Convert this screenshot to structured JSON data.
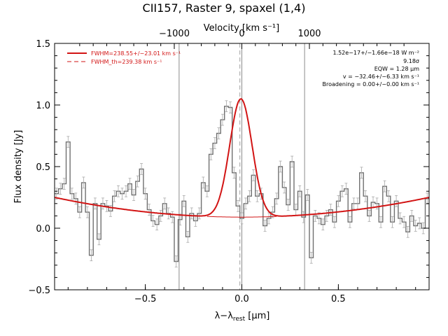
{
  "chart_data": {
    "type": "line",
    "title": "CII157, Raster 9, spaxel (1,4)",
    "xlabel_main": "λ−λ",
    "xlabel_sub": "rest",
    "xlabel_unit": " [μm]",
    "ylabel": "Flux density [Jy]",
    "top_axis_label": "Velocity [km s⁻¹]",
    "xlim": [
      -0.97,
      0.97
    ],
    "ylim": [
      -0.5,
      1.5
    ],
    "x_ticks": [
      -0.5,
      0.0,
      0.5
    ],
    "x_tick_labels": [
      "−0.5",
      "0.0",
      "0.5"
    ],
    "y_ticks": [
      -0.5,
      0.0,
      0.5,
      1.0,
      1.5
    ],
    "y_tick_labels": [
      "−0.5",
      "0.0",
      "0.5",
      "1.0",
      "1.5"
    ],
    "top_ticks": [
      -1000,
      0,
      1000
    ],
    "top_tick_labels": [
      "−1000",
      "0",
      "1000"
    ],
    "top_tick_positions": [
      -0.35,
      0.0,
      0.35
    ],
    "vertical_lines_solid": [
      -0.325,
      0.0,
      0.325
    ],
    "vertical_line_dashed": -0.01,
    "legend": [
      {
        "label": "FWHM=238.55+/−23.01 km s⁻¹",
        "style": "solid",
        "color": "#d21414"
      },
      {
        "label": "FWHM_th=239.38 km s⁻¹",
        "style": "dashed",
        "color": "#d21414"
      }
    ],
    "annotations": [
      "1.52e−17+/−1.66e−18 W m⁻²",
      "9.18σ",
      "EQW = 1.28 μm",
      "v = −32.46+/−6.33 km s⁻¹",
      "Broadening = 0.00+/−0.00 km s⁻¹"
    ],
    "spectrum": {
      "color": "#707070",
      "x": [
        -0.96,
        -0.94,
        -0.92,
        -0.9,
        -0.88,
        -0.86,
        -0.84,
        -0.82,
        -0.8,
        -0.78,
        -0.76,
        -0.74,
        -0.72,
        -0.7,
        -0.68,
        -0.66,
        -0.64,
        -0.62,
        -0.6,
        -0.58,
        -0.56,
        -0.54,
        -0.52,
        -0.5,
        -0.48,
        -0.46,
        -0.44,
        -0.42,
        -0.4,
        -0.38,
        -0.36,
        -0.34,
        -0.32,
        -0.3,
        -0.28,
        -0.26,
        -0.24,
        -0.22,
        -0.2,
        -0.18,
        -0.16,
        -0.14,
        -0.12,
        -0.1,
        -0.08,
        -0.06,
        -0.04,
        -0.02,
        0.0,
        0.02,
        0.04,
        0.06,
        0.08,
        0.1,
        0.12,
        0.14,
        0.16,
        0.18,
        0.2,
        0.22,
        0.24,
        0.26,
        0.28,
        0.3,
        0.32,
        0.34,
        0.36,
        0.38,
        0.4,
        0.42,
        0.44,
        0.46,
        0.48,
        0.5,
        0.52,
        0.54,
        0.56,
        0.58,
        0.6,
        0.62,
        0.64,
        0.66,
        0.68,
        0.7,
        0.72,
        0.74,
        0.76,
        0.78,
        0.8,
        0.82,
        0.84,
        0.86,
        0.88,
        0.9,
        0.92,
        0.94,
        0.96
      ],
      "y": [
        0.28,
        0.32,
        0.36,
        0.7,
        0.28,
        0.24,
        0.13,
        0.37,
        0.13,
        -0.22,
        0.2,
        -0.09,
        0.2,
        0.18,
        0.14,
        0.26,
        0.3,
        0.28,
        0.3,
        0.36,
        0.27,
        0.38,
        0.48,
        0.28,
        0.15,
        0.06,
        0.03,
        0.1,
        0.2,
        0.12,
        0.09,
        -0.27,
        0.07,
        0.22,
        -0.07,
        0.12,
        0.06,
        0.12,
        0.37,
        0.3,
        0.6,
        0.69,
        0.77,
        0.88,
        0.99,
        0.98,
        0.45,
        0.18,
        0.08,
        0.2,
        0.26,
        0.43,
        0.26,
        0.28,
        0.02,
        0.08,
        0.13,
        0.24,
        0.5,
        0.33,
        0.19,
        0.54,
        0.15,
        0.3,
        0.09,
        0.27,
        -0.24,
        0.1,
        0.08,
        0.03,
        0.1,
        0.15,
        0.05,
        0.22,
        0.3,
        0.32,
        0.05,
        0.2,
        0.2,
        0.45,
        0.26,
        0.1,
        0.21,
        0.2,
        0.05,
        0.34,
        0.26,
        0.05,
        0.22,
        0.08,
        0.05,
        -0.03,
        0.1,
        0.02,
        0.04,
        0.0,
        0.24
      ],
      "err": 0.045
    },
    "fit": {
      "color": "#d21414",
      "continuum": {
        "a": 0.09,
        "b": 0.17
      },
      "gaussian": {
        "amp": 0.96,
        "center": -0.005,
        "sigma": 0.058
      }
    }
  }
}
